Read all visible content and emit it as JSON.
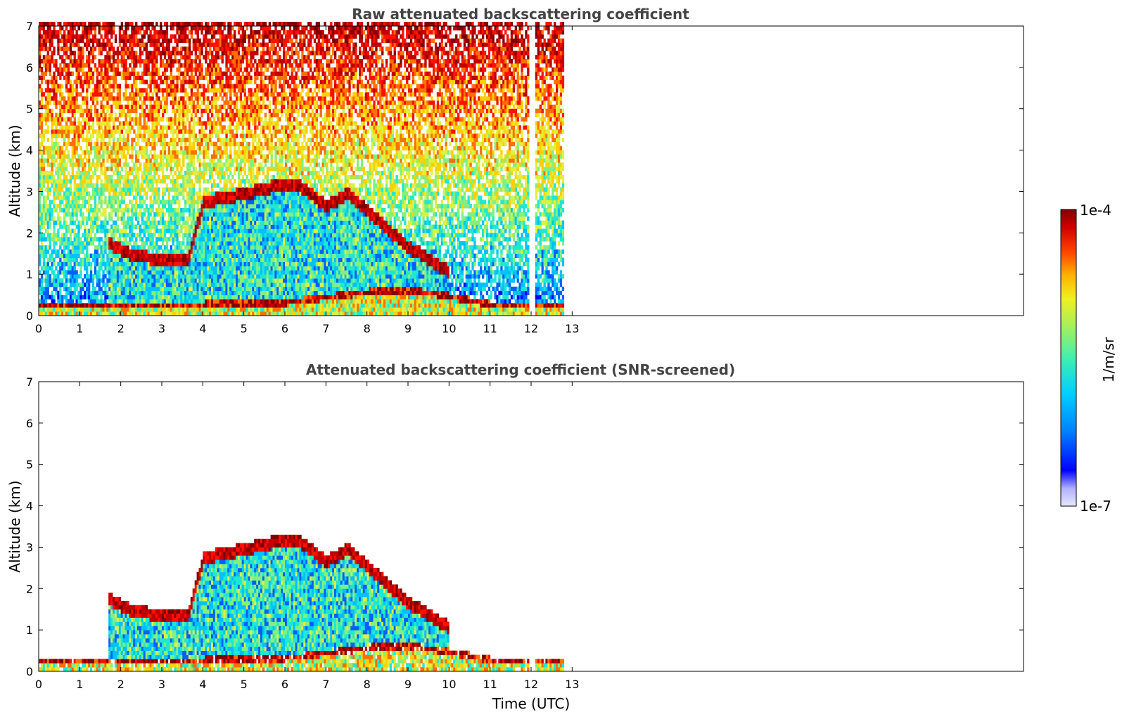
{
  "chart_data": [
    {
      "type": "heatmap",
      "title": "Raw attenuated backscattering coefficient",
      "xlabel": "",
      "ylabel": "Altitude (km)",
      "xlim": [
        0,
        24
      ],
      "ylim": [
        0,
        7
      ],
      "xticks": [
        "0",
        "1",
        "2",
        "3",
        "4",
        "5",
        "6",
        "7",
        "8",
        "9",
        "10",
        "11",
        "12",
        "13"
      ],
      "yticks": [
        "0",
        "1",
        "2",
        "3",
        "4",
        "5",
        "6",
        "7"
      ],
      "data_extent_hours": [
        0,
        12.8
      ],
      "data_gap_hours": [
        11.95,
        12.1
      ],
      "features": {
        "boundary_layer_height_km": [
          [
            0,
            0.25
          ],
          [
            2,
            0.25
          ],
          [
            4,
            0.3
          ],
          [
            6,
            0.35
          ],
          [
            8,
            0.6
          ],
          [
            9,
            0.65
          ],
          [
            10,
            0.5
          ],
          [
            11,
            0.3
          ],
          [
            12,
            0.25
          ],
          [
            12.8,
            0.25
          ]
        ],
        "cloud_layer_km": [
          [
            1.7,
            1.7
          ],
          [
            2.3,
            1.4
          ],
          [
            3.0,
            1.3
          ],
          [
            3.6,
            1.25
          ],
          [
            4.0,
            2.7
          ],
          [
            5.0,
            2.9
          ],
          [
            5.8,
            3.1
          ],
          [
            6.3,
            3.1
          ],
          [
            7.0,
            2.6
          ],
          [
            7.5,
            2.9
          ],
          [
            9.0,
            1.6
          ],
          [
            9.5,
            1.3
          ],
          [
            10.0,
            1.0
          ]
        ]
      }
    },
    {
      "type": "heatmap",
      "title": "Attenuated backscattering coefficient (SNR-screened)",
      "xlabel": "Time (UTC)",
      "ylabel": "Altitude (km)",
      "xlim": [
        0,
        24
      ],
      "ylim": [
        0,
        7
      ],
      "xticks": [
        "0",
        "1",
        "2",
        "3",
        "4",
        "5",
        "6",
        "7",
        "8",
        "9",
        "10",
        "11",
        "12",
        "13"
      ],
      "yticks": [
        "0",
        "1",
        "2",
        "3",
        "4",
        "5",
        "6",
        "7"
      ],
      "data_extent_hours": [
        0,
        12.8
      ],
      "data_gap_hours": [
        11.95,
        12.1
      ],
      "features": {
        "boundary_layer_height_km": [
          [
            0,
            0.25
          ],
          [
            2,
            0.25
          ],
          [
            4,
            0.3
          ],
          [
            6,
            0.35
          ],
          [
            8,
            0.6
          ],
          [
            9,
            0.65
          ],
          [
            10,
            0.5
          ],
          [
            11,
            0.3
          ],
          [
            12,
            0.25
          ],
          [
            12.8,
            0.25
          ]
        ],
        "cloud_layer_km": [
          [
            1.7,
            1.7
          ],
          [
            2.3,
            1.4
          ],
          [
            3.0,
            1.3
          ],
          [
            3.6,
            1.25
          ],
          [
            4.0,
            2.7
          ],
          [
            5.0,
            2.9
          ],
          [
            5.8,
            3.1
          ],
          [
            6.3,
            3.1
          ],
          [
            7.0,
            2.6
          ],
          [
            7.5,
            2.9
          ],
          [
            9.0,
            1.6
          ],
          [
            9.5,
            1.3
          ],
          [
            10.0,
            1.0
          ]
        ]
      }
    }
  ],
  "colorbar": {
    "label": "1/m/sr",
    "max_label": "1e-4",
    "min_label": "1e-7",
    "scale": "log",
    "colormap": "jet",
    "colors": [
      "#e8e8ff",
      "#c8c8ff",
      "#a0a0ff",
      "#0000ff",
      "#0060ff",
      "#00c0ff",
      "#20e8d0",
      "#80f080",
      "#e0f040",
      "#ffd000",
      "#ff7000",
      "#ff1000",
      "#c00000",
      "#800000"
    ]
  }
}
